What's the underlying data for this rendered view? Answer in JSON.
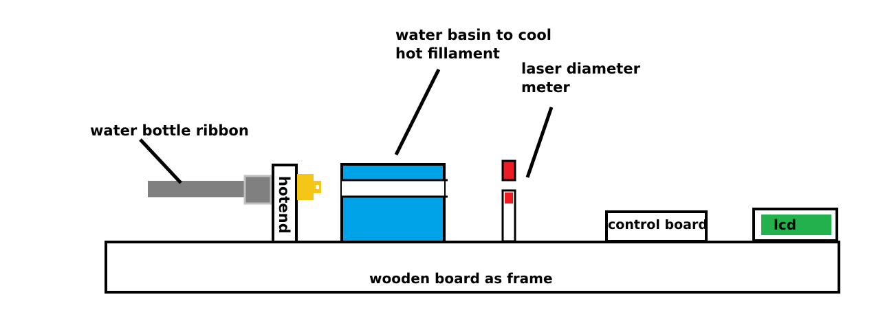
{
  "labels": {
    "water_bottle_ribbon": "water bottle ribbon",
    "water_basin_line1": "water basin to cool",
    "water_basin_line2": "hot fillament",
    "laser_line1": "laser diameter",
    "laser_line2": "meter",
    "hotend": "hotend",
    "control_board": "control board",
    "lcd": "lcd",
    "frame": "wooden board as frame"
  },
  "colors": {
    "ribbon": "#808080",
    "nozzle": "#f5c518",
    "water": "#00a2e8",
    "laser": "#ed1c24",
    "lcd": "#22b14c",
    "outline": "#000000"
  }
}
